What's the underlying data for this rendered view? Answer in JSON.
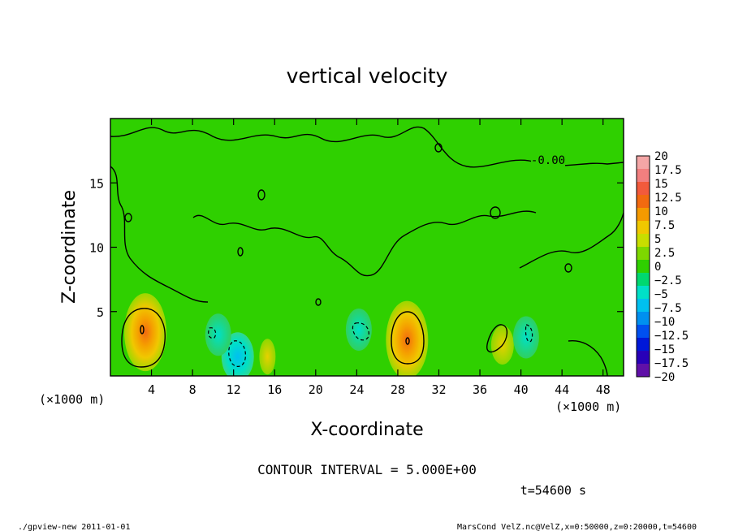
{
  "chart_data": {
    "type": "heatmap",
    "title": "vertical velocity",
    "xlabel": "X-coordinate",
    "ylabel": "Z-coordinate",
    "x_unit_label": "(×1000 m)",
    "y_unit_label": "(×1000 m)",
    "xlim": [
      0,
      50
    ],
    "ylim": [
      0,
      20
    ],
    "x_ticks": [
      4,
      8,
      12,
      16,
      20,
      24,
      28,
      32,
      36,
      40,
      44,
      48
    ],
    "y_ticks": [
      5,
      10,
      15
    ],
    "contour_interval_text": "CONTOUR INTERVAL = 5.000E+00",
    "contour_label": "-0.00",
    "colorbar_levels": [
      20,
      17.5,
      15,
      12.5,
      10,
      7.5,
      5,
      2.5,
      0,
      -2.5,
      -5,
      -7.5,
      -10,
      -12.5,
      -15,
      -17.5,
      -20
    ],
    "colorbar_labels": [
      "20",
      "17.5",
      "15",
      "12.5",
      "10",
      "7.5",
      "5",
      "2.5",
      "0",
      "−2.5",
      "−5",
      "−7.5",
      "−10",
      "−12.5",
      "−15",
      "−17.5",
      "−20"
    ],
    "colorbar_colors": [
      "#f4a6a6",
      "#f27f7f",
      "#f25a3c",
      "#f26a10",
      "#f59a00",
      "#f0c800",
      "#c8de00",
      "#7ed800",
      "#2fd000",
      "#00d870",
      "#00e0c8",
      "#00c0f0",
      "#0090f0",
      "#0050f0",
      "#0018d8",
      "#2800b8",
      "#6010a8"
    ],
    "background_color": "#2fd000",
    "features": [
      {
        "kind": "updraft",
        "x": 3.4,
        "z": 3.4,
        "peak": 10
      },
      {
        "kind": "updraft",
        "x": 28.9,
        "z": 2.8,
        "peak": 10
      },
      {
        "kind": "updraft",
        "x": 38.2,
        "z": 2.4,
        "peak": 5
      },
      {
        "kind": "updraft",
        "x": 15.3,
        "z": 1.5,
        "peak": 2.5
      },
      {
        "kind": "downdraft",
        "x": 12.4,
        "z": 1.5,
        "peak": -7.5
      },
      {
        "kind": "downdraft",
        "x": 24.2,
        "z": 3.6,
        "peak": -5
      },
      {
        "kind": "downdraft",
        "x": 10.5,
        "z": 3.2,
        "peak": -2.5
      },
      {
        "kind": "downdraft",
        "x": 40.5,
        "z": 3.0,
        "peak": -2.5
      }
    ],
    "time_label": "t=54600 s"
  },
  "footer": {
    "left": "./gpview-new  2011-01-01",
    "right": "MarsCond_VelZ.nc@VelZ,x=0:50000,z=0:20000,t=54600"
  }
}
